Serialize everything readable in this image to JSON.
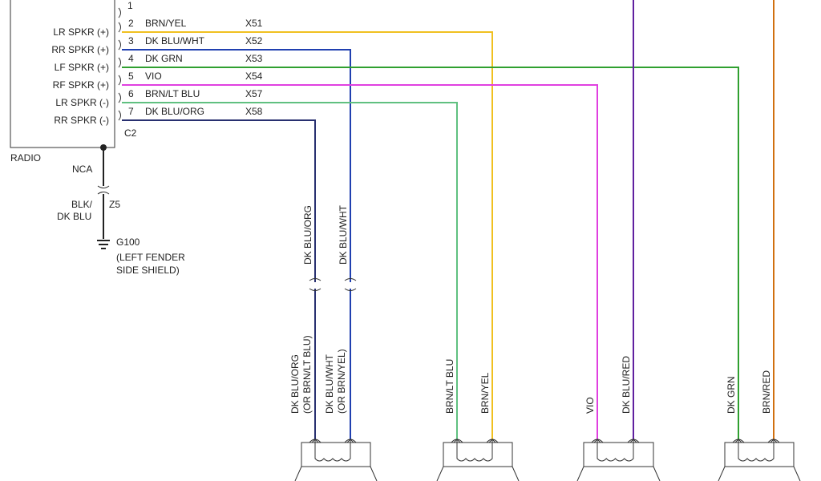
{
  "radio": {
    "label": "RADIO",
    "connector": "C2",
    "pin1": "1",
    "pins": [
      {
        "num": "2",
        "func": "LR SPKR (+)",
        "color": "BRN/YEL",
        "circuit": "X51",
        "hex": "#f0c020"
      },
      {
        "num": "3",
        "func": "RR SPKR (+)",
        "color": "DK BLU/WHT",
        "circuit": "X52",
        "hex": "#2040b0"
      },
      {
        "num": "4",
        "func": "LF SPKR (+)",
        "color": "DK GRN",
        "circuit": "X53",
        "hex": "#30a030"
      },
      {
        "num": "5",
        "func": "RF SPKR (+)",
        "color": "VIO",
        "circuit": "X54",
        "hex": "#e040e0"
      },
      {
        "num": "6",
        "func": "LR SPKR (-)",
        "color": "BRN/LT BLU",
        "circuit": "X57",
        "hex": "#60c080"
      },
      {
        "num": "7",
        "func": "RR SPKR (-)",
        "color": "DK BLU/ORG",
        "circuit": "X58",
        "hex": "#283070"
      }
    ]
  },
  "ground": {
    "nca": "NCA",
    "wire_color_1": "BLK/",
    "wire_color_2": "DK BLU",
    "circuit": "Z5",
    "id": "G100",
    "loc1": "(LEFT FENDER",
    "loc2": "SIDE SHIELD)"
  },
  "speakers": [
    {
      "a1": "DK BLU/ORG",
      "a2": "(OR BRN/LT BLU)",
      "b1": "DK BLU/WHT",
      "b2": "(OR BRN/YEL)",
      "upper_a": "DK BLU/ORG",
      "upper_b": "DK BLU/WHT"
    },
    {
      "a1": "BRN/LT BLU",
      "b1": "BRN/YEL"
    },
    {
      "a1": "VIO",
      "b1": "DK BLU/RED",
      "hex_b": "#6020a0"
    },
    {
      "a1": "DK GRN",
      "b1": "BRN/RED",
      "hex_b": "#d07010"
    }
  ]
}
